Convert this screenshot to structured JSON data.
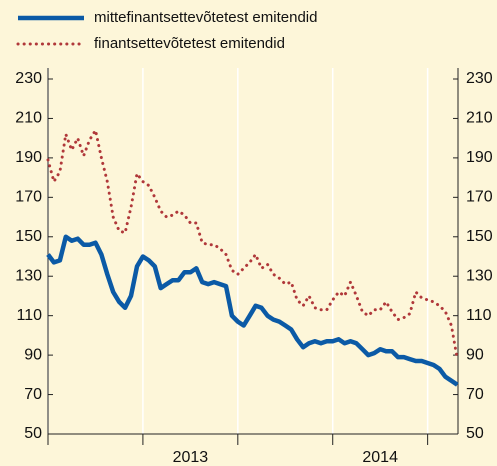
{
  "chart_data": {
    "type": "line",
    "x": [
      2012.5,
      2012.53125,
      2012.5625,
      2012.59375,
      2012.625,
      2012.65625,
      2012.6875,
      2012.71875,
      2012.75,
      2012.78125,
      2012.8125,
      2012.84375,
      2012.875,
      2012.90625,
      2012.9375,
      2012.96875,
      2013.0,
      2013.03125,
      2013.0625,
      2013.09375,
      2013.125,
      2013.15625,
      2013.1875,
      2013.21875,
      2013.25,
      2013.28125,
      2013.3125,
      2013.34375,
      2013.375,
      2013.40625,
      2013.4375,
      2013.46875,
      2013.5,
      2013.53125,
      2013.5625,
      2013.59375,
      2013.625,
      2013.65625,
      2013.6875,
      2013.71875,
      2013.75,
      2013.78125,
      2013.8125,
      2013.84375,
      2013.875,
      2013.90625,
      2013.9375,
      2013.96875,
      2014.0,
      2014.03125,
      2014.0625,
      2014.09375,
      2014.125,
      2014.15625,
      2014.1875,
      2014.21875,
      2014.25,
      2014.28125,
      2014.3125,
      2014.34375,
      2014.375,
      2014.40625,
      2014.4375,
      2014.46875,
      2014.5,
      2014.53125,
      2014.5625,
      2014.59375,
      2014.625,
      2014.65625
    ],
    "series": [
      {
        "name": "mittefinantsettevõtetest emitendid",
        "color": "#0b5aa6",
        "style": "solid",
        "values": [
          141,
          137,
          138,
          150,
          148,
          149,
          146,
          146,
          147,
          141,
          131,
          122,
          117,
          114,
          120,
          135,
          140,
          138,
          135,
          124,
          126,
          128,
          128,
          132,
          132,
          134,
          127,
          126,
          127,
          126,
          125,
          110,
          107,
          105,
          110,
          115,
          114,
          110,
          108,
          107,
          105,
          103,
          98,
          94,
          96,
          97,
          96,
          97,
          97,
          98,
          96,
          97,
          96,
          93,
          90,
          91,
          93,
          92,
          92,
          89,
          89,
          88,
          87,
          87,
          86,
          85,
          83,
          79,
          77,
          75
        ]
      },
      {
        "name": "finantsettevõtetest emitendid",
        "color": "#b0383a",
        "style": "dotted",
        "values": [
          189,
          178,
          183,
          202,
          194,
          200,
          191,
          199,
          204,
          190,
          178,
          160,
          153,
          152,
          165,
          182,
          178,
          176,
          170,
          163,
          160,
          161,
          163,
          161,
          157,
          157,
          147,
          146,
          146,
          144,
          141,
          133,
          131,
          134,
          137,
          141,
          134,
          136,
          131,
          129,
          126,
          127,
          118,
          115,
          120,
          114,
          113,
          113,
          118,
          122,
          120,
          127,
          120,
          112,
          110,
          113,
          113,
          117,
          112,
          108,
          109,
          111,
          122,
          119,
          118,
          117,
          115,
          112,
          105,
          88
        ]
      }
    ],
    "xlim": [
      2012.5,
      2014.66
    ],
    "xticks": [
      2012.5,
      2013,
      2013.5,
      2014,
      2014.5
    ],
    "xtick_labels": [
      {
        "value": 2013.25,
        "label": "2013"
      },
      {
        "value": 2014.25,
        "label": "2014"
      }
    ],
    "ylim": [
      50,
      230
    ],
    "yticks": [
      50,
      70,
      90,
      110,
      130,
      150,
      170,
      190,
      210,
      230
    ],
    "right_axis": true,
    "legend": "top-left"
  }
}
